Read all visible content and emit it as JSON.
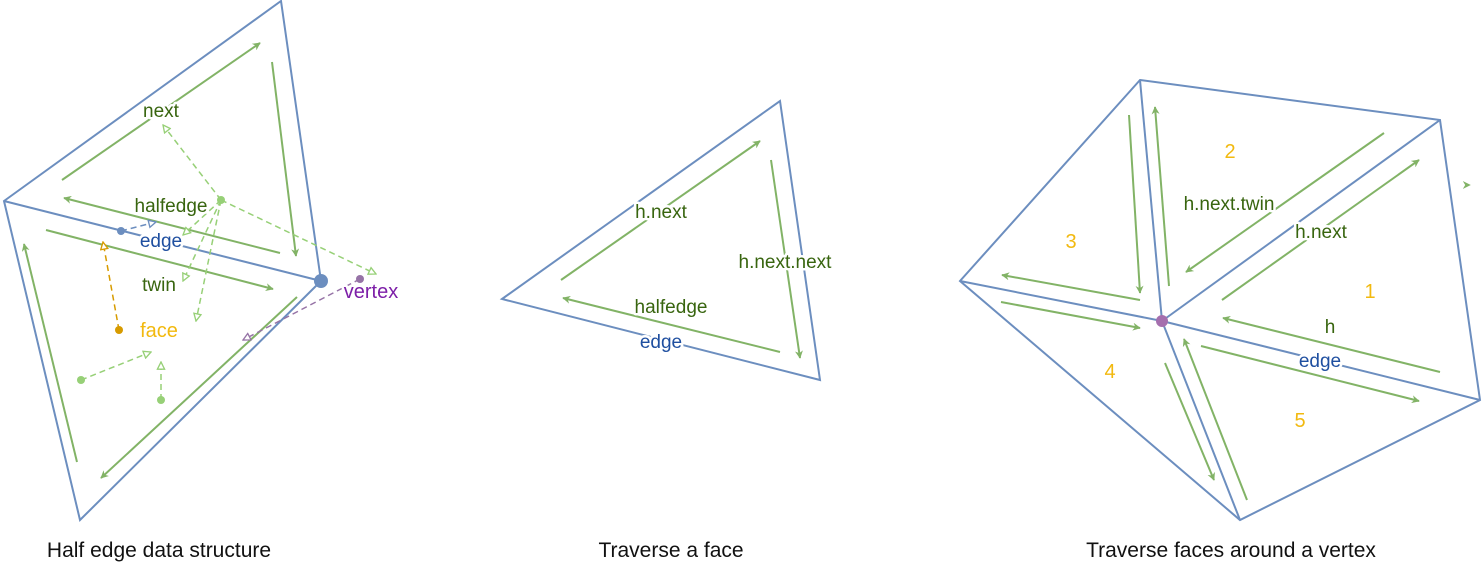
{
  "panels": [
    {
      "caption": "Half edge data structure",
      "labels": {
        "next": "next",
        "halfedge": "halfedge",
        "edge": "edge",
        "twin": "twin",
        "face": "face",
        "vertex": "vertex"
      }
    },
    {
      "caption": "Traverse a face",
      "labels": {
        "h_next": "h.next",
        "h_next_next": "h.next.next",
        "halfedge": "halfedge",
        "edge": "edge"
      }
    },
    {
      "caption": "Traverse faces around a vertex",
      "labels": {
        "h_next_twin": "h.next.twin",
        "h_next": "h.next",
        "h": "h",
        "edge": "edge"
      },
      "face_numbers": [
        "1",
        "2",
        "3",
        "4",
        "5"
      ]
    }
  ],
  "colors": {
    "edge_line": "#6c8ebf",
    "halfedge_arrow": "#82b366",
    "pointer_dashed": "#97d077",
    "label_green": "#38650f",
    "label_blue": "#1f4fa0",
    "face_orange": "#f2b90f",
    "face_pointer": "#d79b00",
    "vertex_purple": "#7d1fa8",
    "vertex_pointer": "#9673a6"
  }
}
